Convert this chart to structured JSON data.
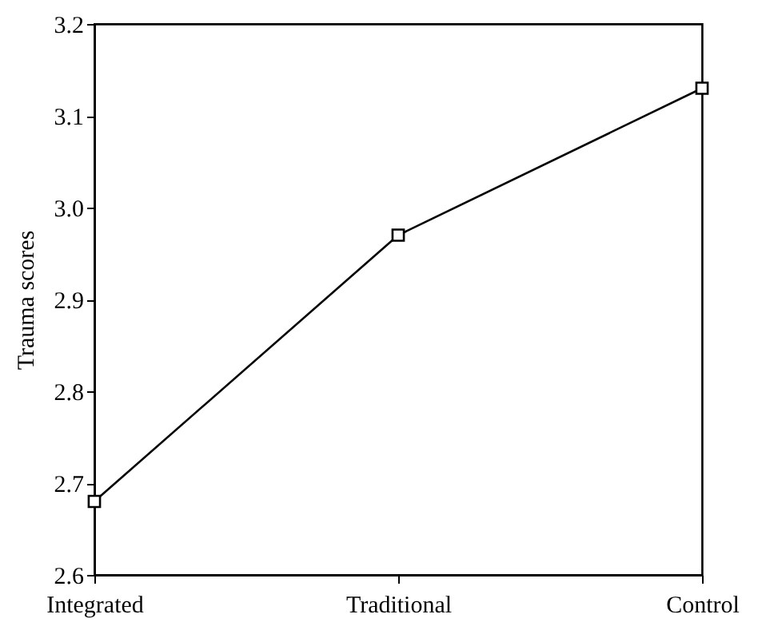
{
  "chart_data": {
    "type": "line",
    "ylabel": "Trauma scores",
    "categories": [
      "Integrated",
      "Traditional",
      "Control"
    ],
    "values": [
      2.68,
      2.97,
      3.13
    ],
    "color": "#000000",
    "marker": "square",
    "ylim": [
      2.6,
      3.2
    ],
    "yticks": [
      2.6,
      2.7,
      2.8,
      2.9,
      {
        "value": 3,
        "label": "3.0"
      },
      3.1,
      3.2
    ],
    "grid": false
  }
}
